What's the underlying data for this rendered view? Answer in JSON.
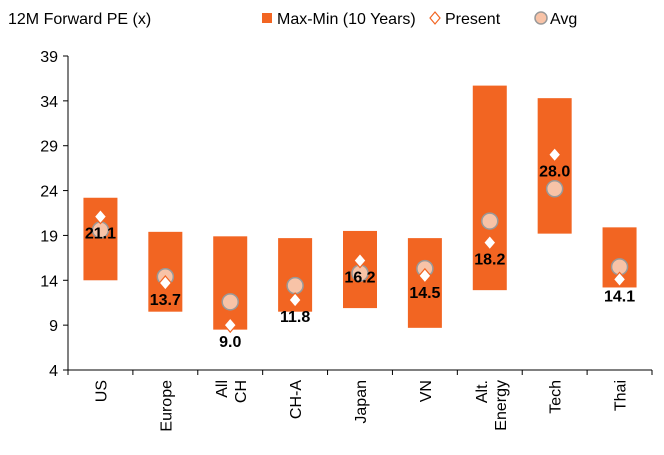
{
  "chart_data": {
    "type": "range-bar",
    "title": "12M Forward PE (x)",
    "categories": [
      "US",
      "Europe",
      "All CH",
      "CH-A",
      "Japan",
      "VN",
      "Alt. Energy",
      "Tech",
      "Thai"
    ],
    "ylim": [
      4,
      39
    ],
    "yticks": [
      4,
      9,
      14,
      19,
      24,
      29,
      34,
      39
    ],
    "series": [
      {
        "name": "Max-Min (10 Years)",
        "color": "#f26522",
        "max": [
          23.2,
          19.4,
          18.9,
          18.7,
          19.5,
          18.7,
          35.7,
          34.3,
          19.9
        ],
        "min": [
          14.0,
          10.5,
          8.5,
          10.5,
          10.9,
          8.7,
          12.9,
          19.2,
          13.2
        ]
      },
      {
        "name": "Present",
        "color": "#f26522",
        "values": [
          21.1,
          13.7,
          9.0,
          11.8,
          16.2,
          14.5,
          18.2,
          28.0,
          14.1
        ],
        "value_labels": [
          "21.1",
          "13.7",
          "9.0",
          "11.8",
          "16.2",
          "14.5",
          "18.2",
          "28.0",
          "14.1"
        ]
      },
      {
        "name": "Avg",
        "color": "#f8c3a7",
        "values": [
          19.6,
          14.4,
          11.6,
          13.4,
          14.8,
          15.3,
          20.6,
          24.2,
          15.5
        ]
      }
    ]
  }
}
